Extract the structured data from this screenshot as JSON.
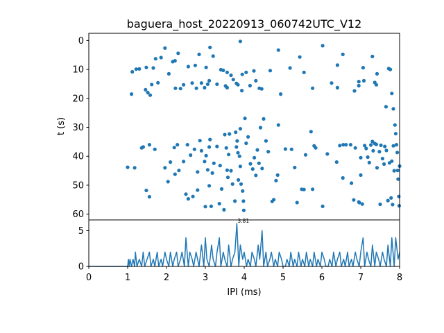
{
  "chart_data": [
    {
      "type": "scatter",
      "title": "baguera_host_20220913_060742UTC_V12",
      "ylabel": "t (s)",
      "xlim": [
        0,
        8
      ],
      "ylim": [
        62,
        -2.5
      ],
      "yticks": [
        0,
        10,
        20,
        30,
        40,
        50,
        60
      ],
      "y_inverted": true,
      "color": "#1f77b4",
      "points": [
        [
          1.1,
          18.5
        ],
        [
          1.12,
          10.8
        ],
        [
          1.22,
          9.9
        ],
        [
          1.3,
          9.8
        ],
        [
          1.4,
          36.8
        ],
        [
          1.46,
          17.0
        ],
        [
          1.48,
          9.3
        ],
        [
          1.52,
          18.0
        ],
        [
          1.56,
          36.0
        ],
        [
          1.58,
          18.9
        ],
        [
          1.62,
          15.2
        ],
        [
          1.66,
          9.5
        ],
        [
          1.72,
          6.3
        ],
        [
          1.78,
          14.6
        ],
        [
          1.86,
          5.9
        ],
        [
          1.96,
          2.6
        ],
        [
          2.06,
          11.5
        ],
        [
          2.16,
          7.3
        ],
        [
          2.22,
          7.0
        ],
        [
          2.23,
          16.5
        ],
        [
          2.3,
          4.4
        ],
        [
          2.36,
          16.6
        ],
        [
          2.44,
          15.3
        ],
        [
          2.56,
          9.0
        ],
        [
          2.66,
          14.7
        ],
        [
          2.74,
          8.6
        ],
        [
          2.77,
          16.5
        ],
        [
          2.84,
          4.8
        ],
        [
          2.9,
          14.7
        ],
        [
          2.98,
          16.3
        ],
        [
          3.02,
          9.3
        ],
        [
          3.06,
          15.1
        ],
        [
          3.1,
          13.9
        ],
        [
          3.12,
          2.4
        ],
        [
          3.2,
          5.4
        ],
        [
          3.3,
          15.1
        ],
        [
          3.4,
          10.1
        ],
        [
          3.46,
          10.3
        ],
        [
          3.52,
          15.7
        ],
        [
          3.56,
          11.0
        ],
        [
          3.56,
          16.3
        ],
        [
          3.66,
          12.0
        ],
        [
          3.72,
          13.5
        ],
        [
          3.8,
          14.8
        ],
        [
          3.84,
          15.3
        ],
        [
          3.9,
          0.3
        ],
        [
          3.94,
          17.3
        ],
        [
          3.95,
          11.7
        ],
        [
          4.05,
          11.0
        ],
        [
          4.15,
          15.6
        ],
        [
          4.25,
          10.5
        ],
        [
          4.3,
          13.9
        ],
        [
          4.39,
          16.5
        ],
        [
          4.45,
          16.7
        ],
        [
          4.67,
          10.4
        ],
        [
          4.88,
          3.3
        ],
        [
          4.94,
          18.5
        ],
        [
          5.18,
          9.5
        ],
        [
          5.43,
          5.7
        ],
        [
          5.54,
          11.0
        ],
        [
          5.76,
          16.5
        ],
        [
          6.02,
          1.8
        ],
        [
          6.25,
          14.7
        ],
        [
          6.4,
          8.5
        ],
        [
          6.4,
          16.3
        ],
        [
          6.54,
          4.8
        ],
        [
          6.84,
          17.4
        ],
        [
          6.95,
          14.2
        ],
        [
          6.95,
          15.6
        ],
        [
          7.06,
          9.4
        ],
        [
          7.08,
          13.9
        ],
        [
          7.3,
          5.5
        ],
        [
          7.36,
          14.5
        ],
        [
          7.4,
          15.3
        ],
        [
          7.42,
          11.5
        ],
        [
          7.65,
          22.9
        ],
        [
          7.72,
          9.7
        ],
        [
          7.76,
          10.0
        ],
        [
          7.8,
          18.3
        ],
        [
          7.84,
          23.6
        ],
        [
          1.0,
          43.8
        ],
        [
          1.18,
          44.0
        ],
        [
          1.36,
          37.1
        ],
        [
          1.48,
          51.8
        ],
        [
          1.56,
          54.0
        ],
        [
          1.7,
          37.6
        ],
        [
          1.96,
          44.0
        ],
        [
          2.04,
          48.8
        ],
        [
          2.1,
          42.0
        ],
        [
          2.2,
          37.0
        ],
        [
          2.22,
          46.2
        ],
        [
          2.28,
          36.0
        ],
        [
          2.32,
          44.9
        ],
        [
          2.44,
          41.8
        ],
        [
          2.5,
          53.1
        ],
        [
          2.54,
          36.0
        ],
        [
          2.56,
          54.7
        ],
        [
          2.62,
          39.6
        ],
        [
          2.68,
          53.9
        ],
        [
          2.72,
          37.6
        ],
        [
          2.8,
          45.4
        ],
        [
          2.8,
          51.7
        ],
        [
          2.86,
          34.6
        ],
        [
          2.9,
          38.1
        ],
        [
          2.98,
          41.8
        ],
        [
          3.0,
          57.4
        ],
        [
          3.02,
          39.8
        ],
        [
          3.06,
          44.7
        ],
        [
          3.1,
          36.8
        ],
        [
          3.1,
          50.2
        ],
        [
          3.12,
          34.2
        ],
        [
          3.15,
          57.3
        ],
        [
          3.18,
          45.8
        ],
        [
          3.22,
          42.4
        ],
        [
          3.3,
          36.6
        ],
        [
          3.36,
          56.4
        ],
        [
          3.38,
          43.2
        ],
        [
          3.42,
          51.3
        ],
        [
          3.48,
          58.5
        ],
        [
          3.5,
          32.5
        ],
        [
          3.54,
          37.1
        ],
        [
          3.56,
          44.8
        ],
        [
          3.58,
          47.3
        ],
        [
          3.6,
          39.4
        ],
        [
          3.62,
          32.3
        ],
        [
          3.66,
          45.0
        ],
        [
          3.7,
          49.6
        ],
        [
          3.76,
          55.5
        ],
        [
          3.78,
          31.7
        ],
        [
          3.8,
          36.8
        ],
        [
          3.82,
          34.7
        ],
        [
          3.84,
          38.8
        ],
        [
          3.85,
          48.2
        ],
        [
          3.88,
          40.0
        ],
        [
          3.9,
          30.5
        ],
        [
          3.9,
          43.5
        ],
        [
          3.92,
          49.6
        ],
        [
          3.96,
          52.0
        ],
        [
          3.98,
          55.5
        ],
        [
          3.99,
          58.7
        ],
        [
          4.02,
          26.9
        ],
        [
          4.05,
          35.5
        ],
        [
          4.1,
          33.3
        ],
        [
          4.16,
          42.6
        ],
        [
          4.22,
          44.4
        ],
        [
          4.26,
          40.5
        ],
        [
          4.3,
          46.6
        ],
        [
          4.34,
          37.8
        ],
        [
          4.38,
          42.4
        ],
        [
          4.42,
          30.1
        ],
        [
          4.46,
          44.2
        ],
        [
          4.5,
          27.1
        ],
        [
          4.56,
          34.7
        ],
        [
          4.62,
          38.4
        ],
        [
          4.72,
          55.6
        ],
        [
          4.76,
          55.0
        ],
        [
          4.82,
          48.4
        ],
        [
          4.86,
          46.5
        ],
        [
          4.88,
          29.2
        ],
        [
          5.06,
          37.5
        ],
        [
          5.22,
          37.6
        ],
        [
          5.3,
          43.9
        ],
        [
          5.36,
          56.0
        ],
        [
          5.48,
          51.4
        ],
        [
          5.54,
          51.5
        ],
        [
          5.58,
          39.5
        ],
        [
          5.72,
          31.5
        ],
        [
          5.76,
          51.4
        ],
        [
          5.8,
          36.4
        ],
        [
          5.84,
          37.1
        ],
        [
          6.02,
          57.3
        ],
        [
          6.14,
          39.2
        ],
        [
          6.38,
          42.0
        ],
        [
          6.46,
          36.3
        ],
        [
          6.54,
          47.5
        ],
        [
          6.55,
          36.0
        ],
        [
          6.62,
          36.0
        ],
        [
          6.74,
          36.0
        ],
        [
          6.76,
          49.3
        ],
        [
          6.82,
          55.1
        ],
        [
          6.86,
          37.1
        ],
        [
          6.95,
          55.8
        ],
        [
          6.96,
          56.0
        ],
        [
          7.0,
          40.5
        ],
        [
          7.0,
          46.5
        ],
        [
          7.04,
          56.5
        ],
        [
          7.1,
          36.3
        ],
        [
          7.14,
          37.3
        ],
        [
          7.18,
          40.3
        ],
        [
          7.22,
          42.2
        ],
        [
          7.26,
          36.1
        ],
        [
          7.3,
          34.9
        ],
        [
          7.32,
          38.1
        ],
        [
          7.36,
          35.6
        ],
        [
          7.4,
          35.9
        ],
        [
          7.42,
          44.0
        ],
        [
          7.48,
          38.4
        ],
        [
          7.5,
          56.6
        ],
        [
          7.52,
          36.2
        ],
        [
          7.56,
          40.8
        ],
        [
          7.6,
          42.7
        ],
        [
          7.62,
          36.6
        ],
        [
          7.66,
          38.0
        ],
        [
          7.7,
          55.3
        ],
        [
          7.74,
          42.3
        ],
        [
          7.78,
          54.4
        ],
        [
          7.8,
          41.7
        ],
        [
          7.82,
          56.7
        ],
        [
          7.84,
          36.4
        ],
        [
          7.86,
          45.0
        ],
        [
          7.88,
          29.2
        ],
        [
          7.9,
          32.2
        ],
        [
          7.92,
          36.0
        ],
        [
          7.94,
          38.7
        ],
        [
          7.95,
          44.9
        ],
        [
          7.96,
          47.9
        ],
        [
          7.98,
          53.9
        ],
        [
          7.99,
          57.1
        ],
        [
          8.0,
          43.4
        ]
      ]
    },
    {
      "type": "line",
      "xlabel": "IPI (ms)",
      "xlim": [
        0,
        8
      ],
      "xticks": [
        0,
        1,
        2,
        3,
        4,
        5,
        6,
        7,
        8
      ],
      "ylim": [
        0,
        6.5
      ],
      "yticks": [
        0,
        5
      ],
      "color": "#1f77b4",
      "peak": {
        "x": 3.81,
        "y": 6,
        "label": "3.81"
      },
      "x": [
        0.0,
        1.0,
        1.02,
        1.04,
        1.06,
        1.1,
        1.14,
        1.18,
        1.2,
        1.24,
        1.3,
        1.36,
        1.4,
        1.44,
        1.5,
        1.56,
        1.6,
        1.66,
        1.7,
        1.76,
        1.8,
        1.86,
        1.9,
        1.96,
        2.0,
        2.06,
        2.1,
        2.16,
        2.2,
        2.26,
        2.3,
        2.36,
        2.4,
        2.46,
        2.5,
        2.56,
        2.6,
        2.66,
        2.7,
        2.76,
        2.8,
        2.84,
        2.9,
        2.96,
        3.0,
        3.04,
        3.1,
        3.16,
        3.2,
        3.26,
        3.3,
        3.36,
        3.4,
        3.46,
        3.5,
        3.56,
        3.6,
        3.66,
        3.7,
        3.76,
        3.81,
        3.86,
        3.9,
        3.96,
        4.0,
        4.06,
        4.1,
        4.16,
        4.2,
        4.26,
        4.3,
        4.36,
        4.4,
        4.46,
        4.5,
        4.56,
        4.6,
        4.66,
        4.7,
        4.76,
        4.8,
        4.86,
        4.9,
        4.96,
        5.0,
        5.06,
        5.1,
        5.16,
        5.2,
        5.26,
        5.3,
        5.36,
        5.4,
        5.46,
        5.5,
        5.56,
        5.6,
        5.66,
        5.7,
        5.76,
        5.8,
        5.86,
        5.9,
        5.96,
        6.0,
        6.06,
        6.1,
        6.16,
        6.2,
        6.26,
        6.3,
        6.36,
        6.4,
        6.46,
        6.5,
        6.56,
        6.6,
        6.66,
        6.7,
        6.76,
        6.8,
        6.86,
        6.9,
        6.96,
        7.0,
        7.06,
        7.1,
        7.16,
        7.2,
        7.26,
        7.3,
        7.36,
        7.4,
        7.46,
        7.5,
        7.56,
        7.6,
        7.66,
        7.7,
        7.76,
        7.8,
        7.86,
        7.9,
        7.96,
        8.0
      ],
      "y": [
        0,
        0,
        1,
        0,
        1,
        0,
        1,
        0,
        2,
        0,
        1,
        0,
        2,
        0,
        1,
        2,
        0,
        1,
        0,
        2,
        0,
        1,
        0,
        2,
        1,
        0,
        2,
        0,
        1,
        2,
        0,
        1,
        2,
        0,
        4,
        0,
        2,
        1,
        0,
        2,
        1,
        0,
        3,
        0,
        4,
        1,
        0,
        3,
        1,
        0,
        2,
        4,
        0,
        2,
        1,
        0,
        3,
        0,
        1,
        2,
        6,
        0,
        3,
        1,
        2,
        0,
        1,
        0,
        2,
        1,
        0,
        3,
        1,
        5,
        0,
        2,
        0,
        1,
        2,
        0,
        1,
        0,
        2,
        1,
        0,
        0,
        1,
        0,
        2,
        0,
        1,
        0,
        2,
        0,
        1,
        0,
        2,
        0,
        1,
        0,
        2,
        0,
        1,
        0,
        2,
        1,
        0,
        0,
        1,
        0,
        2,
        0,
        1,
        2,
        0,
        1,
        0,
        2,
        0,
        1,
        0,
        2,
        1,
        0,
        2,
        4,
        0,
        2,
        1,
        0,
        3,
        0,
        2,
        1,
        0,
        2,
        1,
        0,
        3,
        0,
        4,
        0,
        4,
        1,
        2
      ]
    }
  ]
}
